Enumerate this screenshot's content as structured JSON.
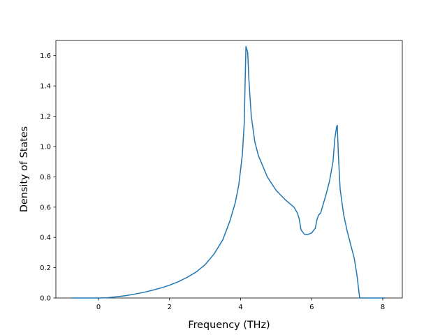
{
  "chart_data": {
    "type": "line",
    "title": "",
    "xlabel": "Frequency (THz)",
    "ylabel": "Density of States",
    "xlim": [
      -1.2,
      8.55
    ],
    "ylim": [
      0,
      1.7
    ],
    "xticks": [
      0,
      2,
      4,
      6,
      8
    ],
    "yticks": [
      0.0,
      0.2,
      0.4,
      0.6,
      0.8,
      1.0,
      1.2,
      1.4,
      1.6
    ],
    "xtick_labels": [
      "0",
      "2",
      "4",
      "6",
      "8"
    ],
    "ytick_labels": [
      "0.0",
      "0.2",
      "0.4",
      "0.6",
      "0.8",
      "1.0",
      "1.2",
      "1.4",
      "1.6"
    ],
    "grid": false,
    "legend": "none",
    "series": [
      {
        "color": "#1f77b4",
        "x": [
          -0.75,
          -0.5,
          -0.25,
          0.0,
          0.25,
          0.5,
          0.75,
          1.0,
          1.25,
          1.5,
          1.75,
          2.0,
          2.25,
          2.5,
          2.75,
          3.0,
          3.25,
          3.5,
          3.7,
          3.85,
          3.95,
          4.05,
          4.1,
          4.15,
          4.2,
          4.23,
          4.3,
          4.4,
          4.5,
          4.75,
          5.0,
          5.25,
          5.5,
          5.6,
          5.65,
          5.7,
          5.8,
          5.9,
          6.0,
          6.1,
          6.15,
          6.2,
          6.25,
          6.3,
          6.4,
          6.5,
          6.6,
          6.65,
          6.7,
          6.72,
          6.75,
          6.8,
          6.9,
          7.0,
          7.1,
          7.2,
          7.28,
          7.35,
          8.05
        ],
        "y": [
          0.0,
          0.0,
          0.0,
          0.0,
          0.002,
          0.008,
          0.015,
          0.025,
          0.036,
          0.05,
          0.066,
          0.085,
          0.108,
          0.137,
          0.172,
          0.22,
          0.29,
          0.385,
          0.51,
          0.63,
          0.75,
          0.95,
          1.15,
          1.66,
          1.62,
          1.45,
          1.2,
          1.03,
          0.94,
          0.8,
          0.71,
          0.65,
          0.6,
          0.56,
          0.52,
          0.45,
          0.42,
          0.42,
          0.43,
          0.46,
          0.52,
          0.55,
          0.56,
          0.6,
          0.68,
          0.77,
          0.9,
          1.05,
          1.13,
          1.14,
          0.95,
          0.72,
          0.55,
          0.44,
          0.35,
          0.26,
          0.14,
          0.0,
          0.0
        ]
      }
    ]
  }
}
